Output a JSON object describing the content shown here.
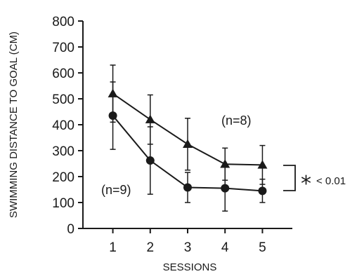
{
  "chart_data": {
    "type": "line",
    "xlabel": "SESSIONS",
    "ylabel": "SWIMMING DISTANCE TO GOAL (CM)",
    "x": [
      1,
      2,
      3,
      4,
      5
    ],
    "xlim": [
      0.2,
      5.8
    ],
    "ylim": [
      0,
      800
    ],
    "yticks": [
      0,
      100,
      200,
      300,
      400,
      500,
      600,
      700,
      800
    ],
    "xticks": [
      1,
      2,
      3,
      4,
      5
    ],
    "grid": false,
    "series": [
      {
        "name": "(n=8)",
        "marker": "triangle",
        "values": [
          520,
          420,
          325,
          248,
          245
        ],
        "error": [
          110,
          95,
          100,
          62,
          75
        ]
      },
      {
        "name": "(n=9)",
        "marker": "circle",
        "values": [
          435,
          262,
          158,
          155,
          145
        ],
        "error": [
          130,
          130,
          58,
          88,
          45
        ]
      }
    ],
    "annotations": {
      "series_a_label": "(n=8)",
      "series_b_label": "(n=9)",
      "significance_star": "*",
      "significance_text": "< 0.01"
    }
  }
}
